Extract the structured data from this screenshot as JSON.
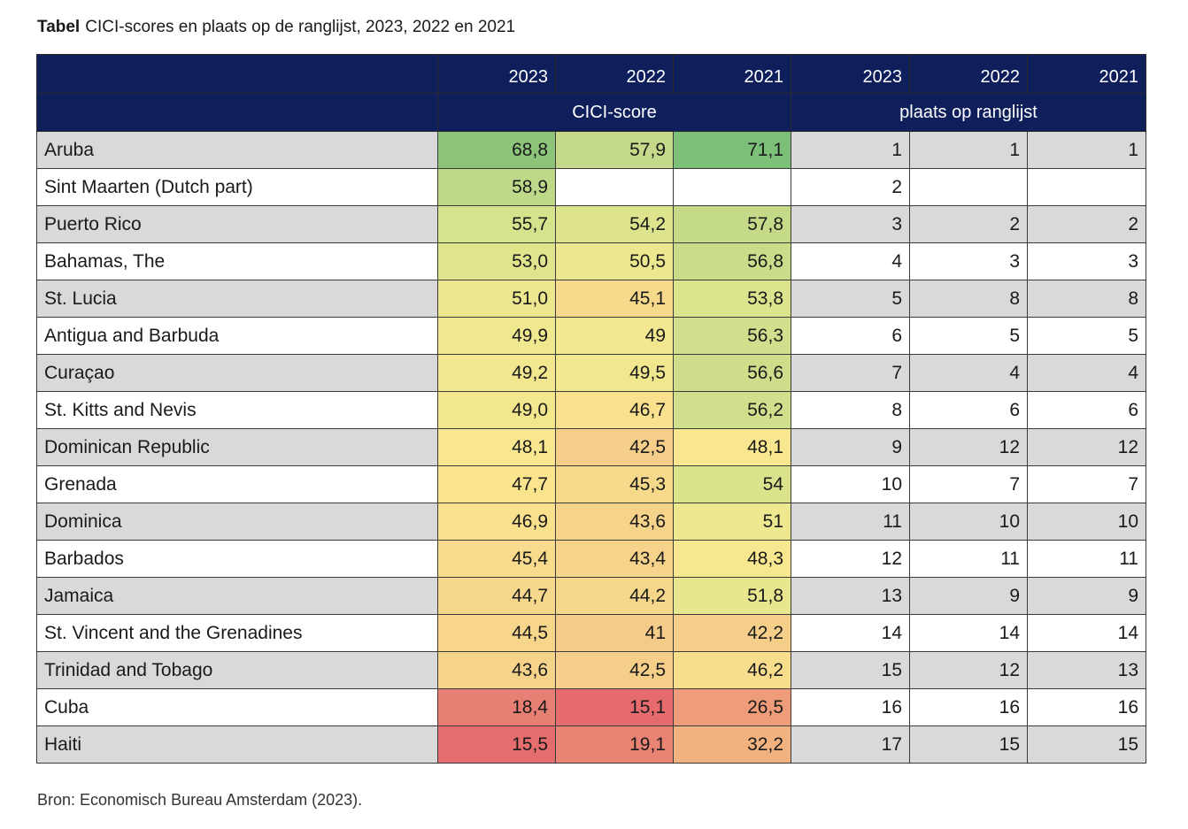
{
  "caption": {
    "label": "Tabel",
    "text": "CICI-scores en plaats op de ranglijst, 2023, 2022 en 2021"
  },
  "header": {
    "years": [
      "2023",
      "2022",
      "2021",
      "2023",
      "2022",
      "2021"
    ],
    "group_score": "CICI-score",
    "group_rank": "plaats op ranglijst"
  },
  "rows": [
    {
      "name": "Aruba",
      "s2023": "68,8",
      "s2022": "57,9",
      "s2021": "71,1",
      "r2023": "1",
      "r2022": "1",
      "r2021": "1",
      "c2023": "#8cc47a",
      "c2022": "#c4da8a",
      "c2021": "#7bbf78"
    },
    {
      "name": "Sint Maarten (Dutch part)",
      "s2023": "58,9",
      "s2022": "",
      "s2021": "",
      "r2023": "2",
      "r2022": "",
      "r2021": "",
      "c2023": "#bfd98a",
      "c2022": "",
      "c2021": ""
    },
    {
      "name": "Puerto Rico",
      "s2023": "55,7",
      "s2022": "54,2",
      "s2021": "57,8",
      "r2023": "3",
      "r2022": "2",
      "r2021": "2",
      "c2023": "#d6e28c",
      "c2022": "#dee48e",
      "c2021": "#c5da89"
    },
    {
      "name": "Bahamas, The",
      "s2023": "53,0",
      "s2022": "50,5",
      "s2021": "56,8",
      "r2023": "4",
      "r2022": "3",
      "r2021": "3",
      "c2023": "#e0e48d",
      "c2022": "#ede78f",
      "c2021": "#cadc8a"
    },
    {
      "name": "St. Lucia",
      "s2023": "51,0",
      "s2022": "45,1",
      "s2021": "53,8",
      "r2023": "5",
      "r2022": "8",
      "r2021": "8",
      "c2023": "#ece78e",
      "c2022": "#f7d98b",
      "c2021": "#dce38d"
    },
    {
      "name": "Antigua and Barbuda",
      "s2023": "49,9",
      "s2022": "49",
      "s2021": "56,3",
      "r2023": "6",
      "r2022": "5",
      "r2021": "5",
      "c2023": "#f0e88e",
      "c2022": "#f2e68e",
      "c2021": "#cfdf8b"
    },
    {
      "name": "Curaçao",
      "s2023": "49,2",
      "s2022": "49,5",
      "s2021": "56,6",
      "r2023": "7",
      "r2022": "4",
      "r2021": "4",
      "c2023": "#f2e78e",
      "c2022": "#f1e78f",
      "c2021": "#cddd8a"
    },
    {
      "name": "St. Kitts and Nevis",
      "s2023": "49,0",
      "s2022": "46,7",
      "s2021": "56,2",
      "r2023": "8",
      "r2022": "6",
      "r2021": "6",
      "c2023": "#f3e78e",
      "c2022": "#f8e08d",
      "c2021": "#cfdf8b"
    },
    {
      "name": "Dominican Republic",
      "s2023": "48,1",
      "s2022": "42,5",
      "s2021": "48,1",
      "r2023": "9",
      "r2022": "12",
      "r2021": "12",
      "c2023": "#f8e78f",
      "c2022": "#f5cf89",
      "c2021": "#f8e78f"
    },
    {
      "name": "Grenada",
      "s2023": "47,7",
      "s2022": "45,3",
      "s2021": "54",
      "r2023": "10",
      "r2022": "7",
      "r2021": "7",
      "c2023": "#fae58e",
      "c2022": "#f7d98b",
      "c2021": "#dae28c"
    },
    {
      "name": "Dominica",
      "s2023": "46,9",
      "s2022": "43,6",
      "s2021": "51",
      "r2023": "11",
      "r2022": "10",
      "r2021": "10",
      "c2023": "#f9e08d",
      "c2022": "#f6d38a",
      "c2021": "#ede78f"
    },
    {
      "name": "Barbados",
      "s2023": "45,4",
      "s2022": "43,4",
      "s2021": "48,3",
      "r2023": "12",
      "r2022": "11",
      "r2021": "11",
      "c2023": "#f8db8c",
      "c2022": "#f6d38a",
      "c2021": "#f7e78f"
    },
    {
      "name": "Jamaica",
      "s2023": "44,7",
      "s2022": "44,2",
      "s2021": "51,8",
      "r2023": "13",
      "r2022": "9",
      "r2021": "9",
      "c2023": "#f7d78b",
      "c2022": "#f6d68b",
      "c2021": "#e8e68e"
    },
    {
      "name": "St. Vincent and the Grenadines",
      "s2023": "44,5",
      "s2022": "41",
      "s2021": "42,2",
      "r2023": "14",
      "r2022": "14",
      "r2021": "14",
      "c2023": "#f7d68b",
      "c2022": "#f4cb88",
      "c2021": "#f5ce89"
    },
    {
      "name": "Trinidad and Tobago",
      "s2023": "43,6",
      "s2022": "42,5",
      "s2021": "46,2",
      "r2023": "15",
      "r2022": "12",
      "r2021": "13",
      "c2023": "#f6d38a",
      "c2022": "#f5cf89",
      "c2021": "#f8dd8c"
    },
    {
      "name": "Cuba",
      "s2023": "18,4",
      "s2022": "15,1",
      "s2021": "26,5",
      "r2023": "16",
      "r2022": "16",
      "r2021": "16",
      "c2023": "#e87f74",
      "c2022": "#e56b6e",
      "c2021": "#ee9c7a"
    },
    {
      "name": "Haiti",
      "s2023": "15,5",
      "s2022": "19,1",
      "s2021": "32,2",
      "r2023": "17",
      "r2022": "15",
      "r2021": "15",
      "c2023": "#e66d6e",
      "c2022": "#e98374",
      "c2021": "#f2b280"
    }
  ],
  "source": "Bron: Economisch Bureau Amsterdam (2023)."
}
